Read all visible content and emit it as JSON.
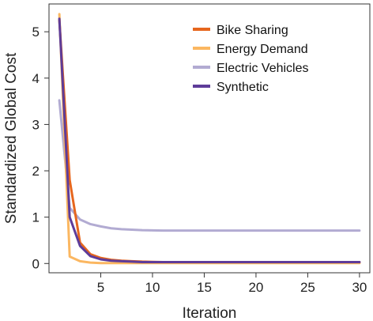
{
  "chart_data": {
    "type": "line",
    "title": "",
    "xlabel": "Iteration",
    "ylabel": "Standardized Global Cost",
    "xlim": [
      0,
      31
    ],
    "ylim": [
      -0.2,
      5.6
    ],
    "xticks": [
      5,
      10,
      15,
      20,
      25,
      30
    ],
    "yticks": [
      0,
      1,
      2,
      3,
      4,
      5
    ],
    "x_tick_labels": [
      "5",
      "10",
      "15",
      "20",
      "25",
      "30"
    ],
    "y_tick_labels": [
      "0",
      "1",
      "2",
      "3",
      "4",
      "5"
    ],
    "grid": false,
    "legend_position": "top-right",
    "x": [
      1,
      2,
      3,
      4,
      5,
      6,
      7,
      8,
      9,
      10,
      11,
      12,
      13,
      14,
      15,
      16,
      17,
      18,
      19,
      20,
      21,
      22,
      23,
      24,
      25,
      26,
      27,
      28,
      29,
      30
    ],
    "series": [
      {
        "name": "Bike Sharing",
        "color": "#e6661e",
        "values": [
          5.25,
          1.8,
          0.45,
          0.2,
          0.12,
          0.08,
          0.06,
          0.05,
          0.04,
          0.035,
          0.03,
          0.03,
          0.03,
          0.03,
          0.03,
          0.03,
          0.03,
          0.03,
          0.03,
          0.03,
          0.03,
          0.03,
          0.03,
          0.03,
          0.03,
          0.03,
          0.03,
          0.03,
          0.03,
          0.03
        ]
      },
      {
        "name": "Energy Demand",
        "color": "#fbb761",
        "values": [
          5.38,
          0.15,
          0.05,
          0.02,
          0.01,
          0.01,
          0.01,
          0.01,
          0.01,
          0.01,
          0.01,
          0.01,
          0.01,
          0.01,
          0.01,
          0.01,
          0.01,
          0.01,
          0.01,
          0.01,
          0.01,
          0.01,
          0.01,
          0.01,
          0.01,
          0.01,
          0.01,
          0.01,
          0.01,
          0.01
        ]
      },
      {
        "name": "Electric Vehicles",
        "color": "#b2abd2",
        "values": [
          3.52,
          1.2,
          0.95,
          0.85,
          0.8,
          0.76,
          0.74,
          0.73,
          0.72,
          0.715,
          0.71,
          0.71,
          0.71,
          0.71,
          0.71,
          0.71,
          0.71,
          0.71,
          0.71,
          0.71,
          0.71,
          0.71,
          0.71,
          0.71,
          0.71,
          0.71,
          0.71,
          0.71,
          0.71,
          0.71
        ]
      },
      {
        "name": "Synthetic",
        "color": "#5e3c99",
        "values": [
          5.28,
          1.0,
          0.38,
          0.16,
          0.09,
          0.06,
          0.05,
          0.04,
          0.03,
          0.03,
          0.03,
          0.03,
          0.03,
          0.03,
          0.03,
          0.03,
          0.03,
          0.03,
          0.03,
          0.03,
          0.03,
          0.03,
          0.03,
          0.03,
          0.03,
          0.03,
          0.03,
          0.03,
          0.03,
          0.03
        ]
      }
    ]
  }
}
